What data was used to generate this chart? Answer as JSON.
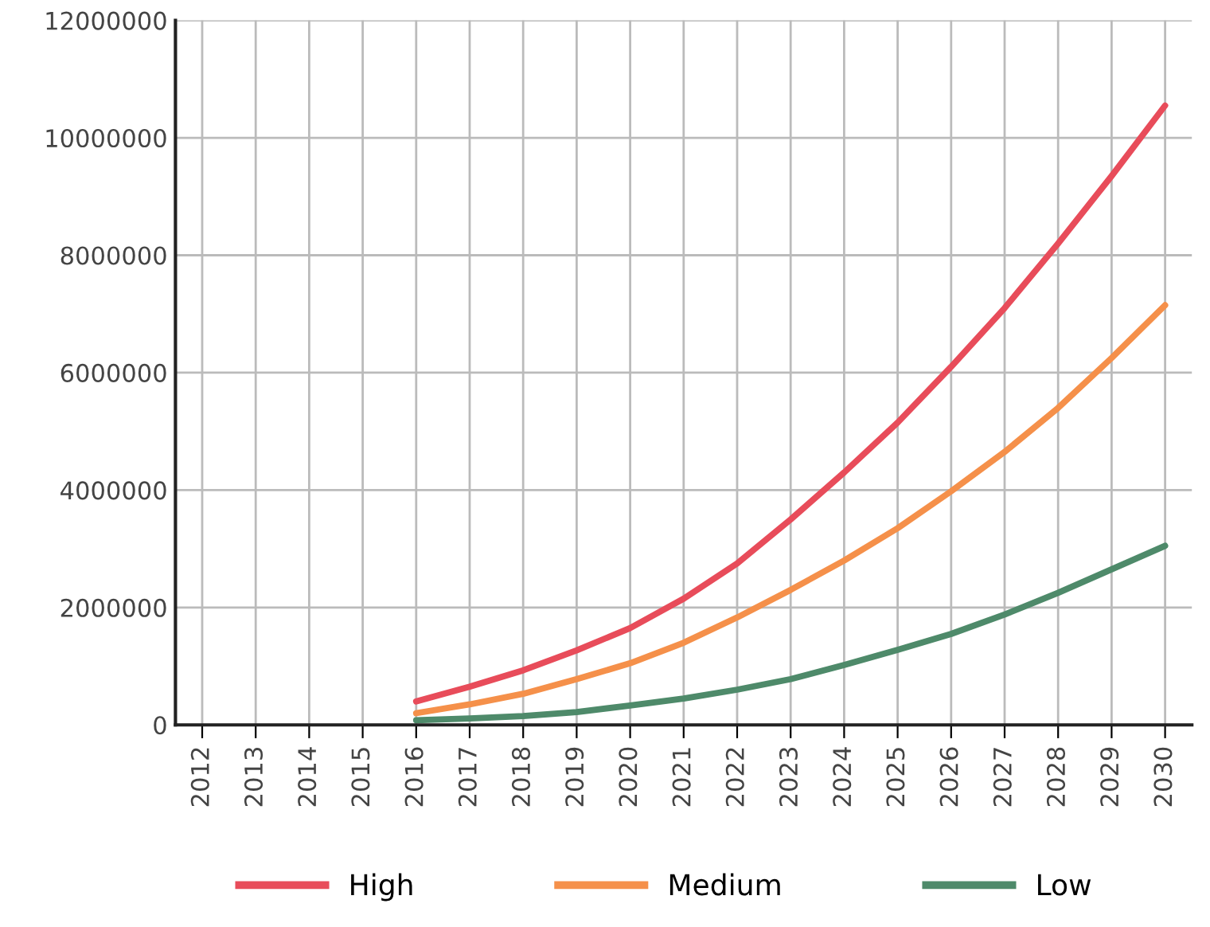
{
  "chart_data": {
    "type": "line",
    "categories": [
      "2012",
      "2013",
      "2014",
      "2015",
      "2016",
      "2017",
      "2018",
      "2019",
      "2020",
      "2021",
      "2022",
      "2023",
      "2024",
      "2025",
      "2026",
      "2027",
      "2028",
      "2029",
      "2030"
    ],
    "series": [
      {
        "name": "High",
        "color": "#e84c5a",
        "values": [
          null,
          null,
          null,
          null,
          400000,
          650000,
          930000,
          1270000,
          1650000,
          2150000,
          2750000,
          3500000,
          4300000,
          5150000,
          6100000,
          7100000,
          8200000,
          9350000,
          10550000
        ]
      },
      {
        "name": "Medium",
        "color": "#f5904a",
        "values": [
          null,
          null,
          null,
          null,
          200000,
          350000,
          530000,
          780000,
          1050000,
          1400000,
          1830000,
          2300000,
          2800000,
          3350000,
          3980000,
          4650000,
          5400000,
          6250000,
          7150000
        ]
      },
      {
        "name": "Low",
        "color": "#4e8a6a",
        "values": [
          null,
          null,
          null,
          null,
          80000,
          110000,
          150000,
          220000,
          330000,
          450000,
          600000,
          780000,
          1020000,
          1280000,
          1550000,
          1880000,
          2250000,
          2650000,
          3050000
        ]
      }
    ],
    "ylim": [
      0,
      12000000
    ],
    "yticks": [
      0,
      2000000,
      4000000,
      6000000,
      8000000,
      10000000,
      12000000
    ],
    "grid": true,
    "legend": "bottom",
    "marker": "none",
    "line_style": "solid"
  }
}
